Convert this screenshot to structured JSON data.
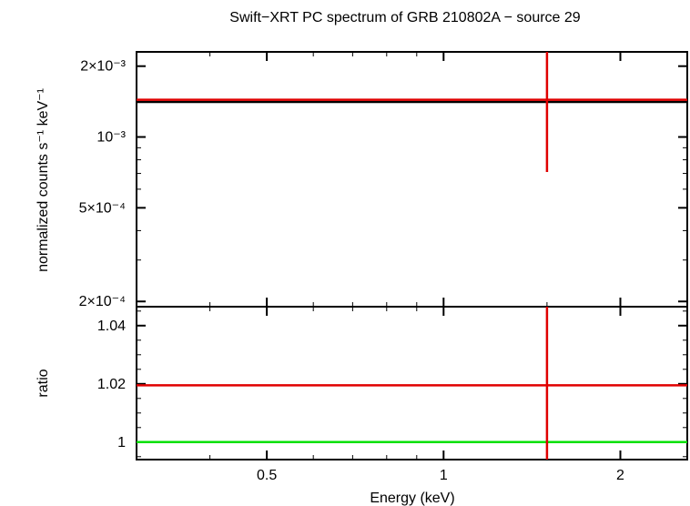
{
  "chart_data": [
    {
      "type": "line",
      "panel": "top",
      "title": "Swift−XRT PC spectrum of GRB 210802A − source 29",
      "ylabel": "normalized counts s⁻¹ keV⁻¹",
      "xscale": "log",
      "yscale": "log",
      "xlim": [
        0.3,
        2.6
      ],
      "ylim": [
        0.00019,
        0.0023
      ],
      "yticks": [
        {
          "value": 0.002,
          "label": "2×10⁻³"
        },
        {
          "value": 0.001,
          "label": "10⁻³"
        },
        {
          "value": 0.0005,
          "label": "5×10⁻⁴"
        },
        {
          "value": 0.0002,
          "label": "2×10⁻⁴"
        }
      ],
      "series": [
        {
          "name": "model",
          "color": "#000000",
          "points": [
            [
              0.3,
              0.00141
            ],
            [
              2.6,
              0.00141
            ]
          ]
        },
        {
          "name": "data",
          "color": "#e00000",
          "points": [
            [
              0.3,
              0.00144
            ],
            [
              2.6,
              0.00144
            ]
          ],
          "errorbar": {
            "x": 1.5,
            "ylow": 0.00071,
            "yhigh": 0.0023
          }
        }
      ]
    },
    {
      "type": "line",
      "panel": "bottom",
      "xlabel": "Energy (keV)",
      "ylabel": "ratio",
      "xscale": "log",
      "xlim": [
        0.3,
        2.6
      ],
      "ylim": [
        0.994,
        1.0465
      ],
      "xticks": [
        {
          "value": 0.5,
          "label": "0.5"
        },
        {
          "value": 1,
          "label": "1"
        },
        {
          "value": 2,
          "label": "2"
        }
      ],
      "yticks": [
        {
          "value": 1.04,
          "label": "1.04"
        },
        {
          "value": 1.02,
          "label": "1.02"
        },
        {
          "value": 1,
          "label": "1"
        }
      ],
      "series": [
        {
          "name": "unity",
          "color": "#00e000",
          "points": [
            [
              0.3,
              1.0
            ],
            [
              2.6,
              1.0
            ]
          ]
        },
        {
          "name": "ratio",
          "color": "#e00000",
          "points": [
            [
              0.3,
              1.0195
            ],
            [
              2.6,
              1.0195
            ]
          ],
          "errorbar": {
            "x": 1.5,
            "ylow": 0.994,
            "yhigh": 1.0465
          }
        }
      ]
    }
  ]
}
